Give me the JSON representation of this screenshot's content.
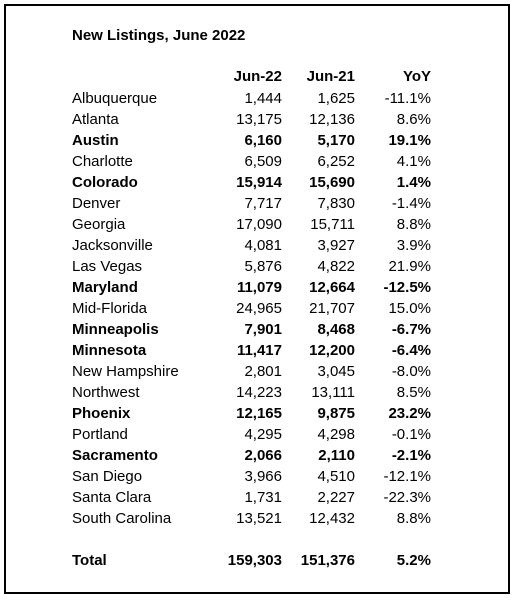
{
  "title": "New Listings, June 2022",
  "header": [
    "Jun-22",
    "Jun-21",
    "YoY"
  ],
  "rows": [
    {
      "name": "Albuquerque",
      "cells": [
        "1,444",
        "1,625",
        "-11.1%"
      ],
      "bold": false
    },
    {
      "name": "Atlanta",
      "cells": [
        "13,175",
        "12,136",
        "8.6%"
      ],
      "bold": false
    },
    {
      "name": "Austin",
      "cells": [
        "6,160",
        "5,170",
        "19.1%"
      ],
      "bold": true
    },
    {
      "name": "Charlotte",
      "cells": [
        "6,509",
        "6,252",
        "4.1%"
      ],
      "bold": false
    },
    {
      "name": "Colorado",
      "cells": [
        "15,914",
        "15,690",
        "1.4%"
      ],
      "bold": true
    },
    {
      "name": "Denver",
      "cells": [
        "7,717",
        "7,830",
        "-1.4%"
      ],
      "bold": false
    },
    {
      "name": "Georgia",
      "cells": [
        "17,090",
        "15,711",
        "8.8%"
      ],
      "bold": false
    },
    {
      "name": "Jacksonville",
      "cells": [
        "4,081",
        "3,927",
        "3.9%"
      ],
      "bold": false
    },
    {
      "name": "Las Vegas",
      "cells": [
        "5,876",
        "4,822",
        "21.9%"
      ],
      "bold": false
    },
    {
      "name": "Maryland",
      "cells": [
        "11,079",
        "12,664",
        "-12.5%"
      ],
      "bold": true
    },
    {
      "name": "Mid-Florida",
      "cells": [
        "24,965",
        "21,707",
        "15.0%"
      ],
      "bold": false
    },
    {
      "name": "Minneapolis",
      "cells": [
        "7,901",
        "8,468",
        "-6.7%"
      ],
      "bold": true
    },
    {
      "name": "Minnesota",
      "cells": [
        "11,417",
        "12,200",
        "-6.4%"
      ],
      "bold": true
    },
    {
      "name": "New Hampshire",
      "cells": [
        "2,801",
        "3,045",
        "-8.0%"
      ],
      "bold": false
    },
    {
      "name": "Northwest",
      "cells": [
        "14,223",
        "13,111",
        "8.5%"
      ],
      "bold": false
    },
    {
      "name": "Phoenix",
      "cells": [
        "12,165",
        "9,875",
        "23.2%"
      ],
      "bold": true
    },
    {
      "name": "Portland",
      "cells": [
        "4,295",
        "4,298",
        "-0.1%"
      ],
      "bold": false
    },
    {
      "name": "Sacramento",
      "cells": [
        "2,066",
        "2,110",
        "-2.1%"
      ],
      "bold": true
    },
    {
      "name": "San Diego",
      "cells": [
        "3,966",
        "4,510",
        "-12.1%"
      ],
      "bold": false
    },
    {
      "name": "Santa Clara",
      "cells": [
        "1,731",
        "2,227",
        "-22.3%"
      ],
      "bold": false
    },
    {
      "name": "South Carolina",
      "cells": [
        "13,521",
        "12,432",
        "8.8%"
      ],
      "bold": false
    }
  ],
  "total": {
    "name": "Total",
    "cells": [
      "159,303",
      "151,376",
      "5.2%"
    ],
    "bold": true
  }
}
